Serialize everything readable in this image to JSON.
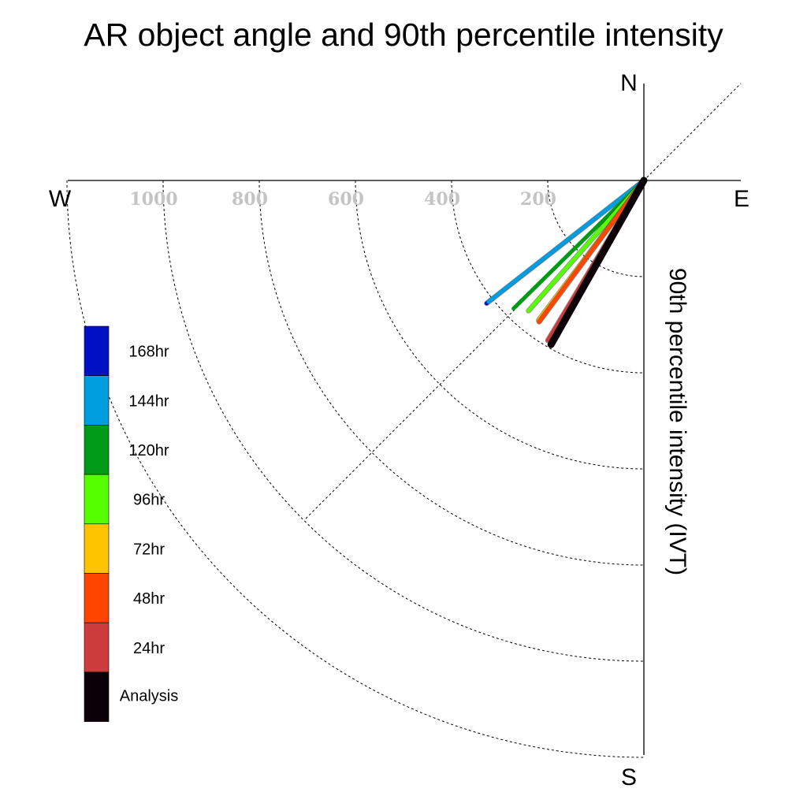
{
  "chart_data": {
    "type": "polar-vector",
    "title": "AR object angle and 90th percentile intensity",
    "radial_label": "90th percentile intensity (IVT)",
    "compass": {
      "north": "N",
      "south": "S",
      "east": "E",
      "west": "W"
    },
    "radial_ticks": [
      200,
      400,
      600,
      800,
      1000
    ],
    "radial_tick_labels": [
      "200",
      "400",
      "600",
      "800",
      "1000"
    ],
    "radial_max": 1200,
    "angle_reference": "degrees clockwise from north",
    "series": [
      {
        "name": "168hr",
        "color": "#0010c4",
        "angle": 232,
        "intensity": 415
      },
      {
        "name": "144hr",
        "color": "#009ddf",
        "angle": 232,
        "intensity": 410
      },
      {
        "name": "120hr",
        "color": "#009a18",
        "angle": 225.5,
        "intensity": 380
      },
      {
        "name": "96hr",
        "color": "#55ff00",
        "angle": 221.5,
        "intensity": 362
      },
      {
        "name": "72hr",
        "color": "#ffc400",
        "angle": 217,
        "intensity": 364
      },
      {
        "name": "48hr",
        "color": "#ff4500",
        "angle": 216.5,
        "intensity": 366
      },
      {
        "name": "24hr",
        "color": "#cc3c3c",
        "angle": 211,
        "intensity": 388
      },
      {
        "name": "Analysis",
        "color": "#0c0008",
        "angle": 209.5,
        "intensity": 392
      }
    ],
    "legend": {
      "placement": "left",
      "entries": [
        "168hr",
        "144hr",
        "120hr",
        "96hr",
        "72hr",
        "48hr",
        "24hr",
        "Analysis"
      ]
    }
  }
}
